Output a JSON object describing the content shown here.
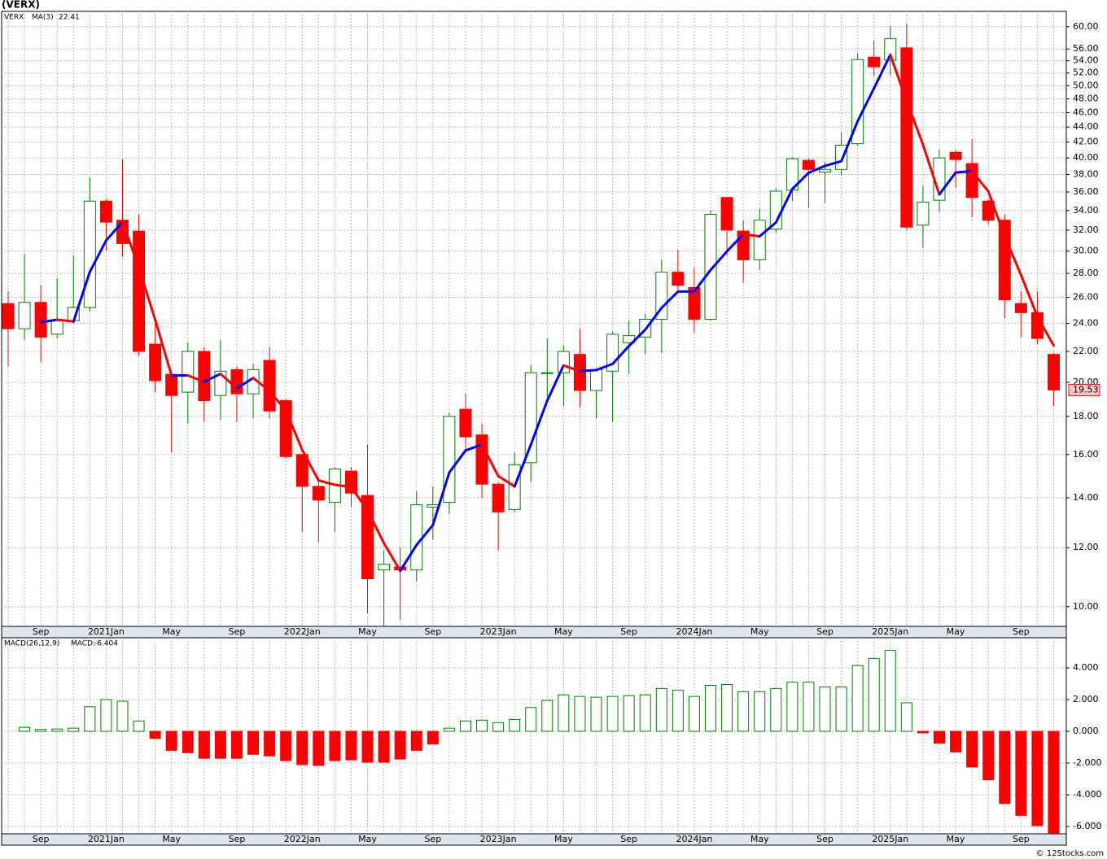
{
  "title": "(VERX)",
  "footer": "© 12Stocks.com",
  "chart_data": [
    {
      "type": "candlestick",
      "categories": [
        null,
        null,
        "Sep",
        null,
        null,
        null,
        "2021Jan",
        null,
        null,
        null,
        "May",
        null,
        null,
        null,
        "Sep",
        null,
        null,
        null,
        "2022Jan",
        null,
        null,
        null,
        "May",
        null,
        null,
        null,
        "Sep",
        null,
        null,
        null,
        "2023Jan",
        null,
        null,
        null,
        "May",
        null,
        null,
        null,
        "Sep",
        null,
        null,
        null,
        "2024Jan",
        null,
        null,
        null,
        "May",
        null,
        null,
        null,
        "Sep",
        null,
        null,
        null,
        "2025Jan",
        null,
        null,
        null,
        "May",
        null,
        null,
        null,
        "Sep",
        null,
        null
      ],
      "name": "VERX",
      "open": [
        25.5,
        23.6,
        25.6,
        23.2,
        24.2,
        25.2,
        35.0,
        33.0,
        31.9,
        22.5,
        20.5,
        19.4,
        22.0,
        19.2,
        20.8,
        19.3,
        21.4,
        18.9,
        16.0,
        14.5,
        13.8,
        15.2,
        14.1,
        11.2,
        11.3,
        11.2,
        13.6,
        13.8,
        18.4,
        17.0,
        14.6,
        13.5,
        15.6,
        20.6,
        20.6,
        21.8,
        19.5,
        20.7,
        22.6,
        23.0,
        24.3,
        28.1,
        26.8,
        24.3,
        35.4,
        31.9,
        29.2,
        32.1,
        36.2,
        39.7,
        38.3,
        38.6,
        41.8,
        54.6,
        54.1,
        56.2,
        32.5,
        35.1,
        40.7,
        39.3,
        35.0,
        33.0,
        25.5,
        24.8,
        21.8
      ],
      "high": [
        26.5,
        29.7,
        27.0,
        27.6,
        29.6,
        37.7,
        35.2,
        39.8,
        33.6,
        24.0,
        20.6,
        22.6,
        22.3,
        22.8,
        21.0,
        21.2,
        22.3,
        19.0,
        16.0,
        14.9,
        15.4,
        15.4,
        16.5,
        11.9,
        12.0,
        14.3,
        14.5,
        18.2,
        19.3,
        17.6,
        14.7,
        16.1,
        21.1,
        22.9,
        22.4,
        23.6,
        20.9,
        23.4,
        24.2,
        24.7,
        29.2,
        30.1,
        28.5,
        34.0,
        35.5,
        33.0,
        34.2,
        36.5,
        40.1,
        40.0,
        39.5,
        43.3,
        55.3,
        57.5,
        60.1,
        60.6,
        36.7,
        41.0,
        41.0,
        42.4,
        35.2,
        33.6,
        26.5,
        26.5,
        21.9
      ],
      "low": [
        21.0,
        22.8,
        21.3,
        22.9,
        24.0,
        24.9,
        30.0,
        29.5,
        21.7,
        19.4,
        16.1,
        17.6,
        17.7,
        17.8,
        17.7,
        17.9,
        17.9,
        15.8,
        12.6,
        12.2,
        12.6,
        13.6,
        9.8,
        9.4,
        9.6,
        10.8,
        12.3,
        13.3,
        16.2,
        14.0,
        11.9,
        13.4,
        14.7,
        19.1,
        18.6,
        18.5,
        17.9,
        17.7,
        20.5,
        21.8,
        21.9,
        26.6,
        23.3,
        24.2,
        29.6,
        27.2,
        28.3,
        31.7,
        35.0,
        34.3,
        34.8,
        37.9,
        41.6,
        51.5,
        51.6,
        32.0,
        30.3,
        33.8,
        36.5,
        33.3,
        32.6,
        24.4,
        23.0,
        22.5,
        18.6
      ],
      "close": [
        23.6,
        25.6,
        23.0,
        24.2,
        25.2,
        35.0,
        32.8,
        30.7,
        22.0,
        20.1,
        19.2,
        22.0,
        18.9,
        20.7,
        19.3,
        20.8,
        18.3,
        15.9,
        14.5,
        13.9,
        15.3,
        14.2,
        10.9,
        11.4,
        11.2,
        13.7,
        13.7,
        18.0,
        16.9,
        14.6,
        13.4,
        15.5,
        20.6,
        20.6,
        22.0,
        19.5,
        20.8,
        23.2,
        23.1,
        24.3,
        28.1,
        27.0,
        24.3,
        33.6,
        32.0,
        29.2,
        33.0,
        36.1,
        39.9,
        38.6,
        38.6,
        41.6,
        54.2,
        53.0,
        57.8,
        32.3,
        34.9,
        40.0,
        39.8,
        35.4,
        33.0,
        25.8,
        24.8,
        22.9,
        19.53
      ],
      "up_color": "#008000",
      "down_color": "#ff0000",
      "series": [
        {
          "name": "MA(3)",
          "rise_color": "#0000ff",
          "fall_color": "#ff0000",
          "values": [
            null,
            null,
            24.07,
            24.27,
            24.13,
            28.13,
            31.0,
            32.83,
            28.5,
            24.27,
            20.43,
            20.43,
            20.03,
            20.53,
            19.63,
            20.27,
            19.47,
            18.33,
            16.23,
            14.77,
            14.57,
            14.47,
            13.47,
            12.17,
            11.17,
            12.1,
            12.87,
            15.13,
            16.2,
            16.5,
            14.97,
            14.5,
            16.5,
            18.9,
            21.07,
            20.7,
            20.77,
            21.17,
            22.37,
            23.53,
            25.17,
            26.47,
            26.47,
            28.3,
            29.97,
            31.6,
            31.4,
            32.77,
            36.33,
            38.2,
            39.03,
            39.6,
            44.8,
            49.6,
            55.0,
            47.7,
            41.67,
            35.73,
            38.23,
            38.4,
            36.07,
            31.4,
            27.87,
            24.5,
            22.41
          ]
        }
      ],
      "log_scale": true,
      "grid": true,
      "ylim": [
        9.41,
        62.9
      ],
      "yticks": [
        {
          "value": 10,
          "label": "10.00"
        },
        {
          "value": 12,
          "label": "12.00"
        },
        {
          "value": 14,
          "label": "14.00"
        },
        {
          "value": 16,
          "label": "16.00"
        },
        {
          "value": 18,
          "label": "18.00"
        },
        {
          "value": 20,
          "label": "20.00"
        },
        {
          "value": 22,
          "label": "22.00"
        },
        {
          "value": 24,
          "label": "24.00"
        },
        {
          "value": 26,
          "label": "26.00"
        },
        {
          "value": 28,
          "label": "28.00"
        },
        {
          "value": 30,
          "label": "30.00"
        },
        {
          "value": 32,
          "label": "32.00"
        },
        {
          "value": 34,
          "label": "34.00"
        },
        {
          "value": 36,
          "label": "36.00"
        },
        {
          "value": 38,
          "label": "38.00"
        },
        {
          "value": 40,
          "label": "40.00"
        },
        {
          "value": 42,
          "label": "42.00"
        },
        {
          "value": 44,
          "label": "44.00"
        },
        {
          "value": 46,
          "label": "46.00"
        },
        {
          "value": 48,
          "label": "48.00"
        },
        {
          "value": 50,
          "label": "50.00"
        },
        {
          "value": 52,
          "label": "52.00"
        },
        {
          "value": 54,
          "label": "54.00"
        },
        {
          "value": 56,
          "label": "56.00"
        },
        {
          "value": 60,
          "label": "60.00"
        }
      ]
    },
    {
      "type": "bar",
      "name": "MACD(26,12,9)",
      "series": [
        {
          "name": "MACD:",
          "pos_color": "#008000",
          "neg_color": "#ff0000",
          "values": [
            null,
            0.25,
            0.12,
            0.15,
            0.2,
            1.55,
            2.0,
            1.9,
            0.65,
            -0.45,
            -1.2,
            -1.35,
            -1.7,
            -1.7,
            -1.7,
            -1.45,
            -1.55,
            -1.85,
            -2.1,
            -2.15,
            -1.85,
            -1.8,
            -1.95,
            -1.95,
            -1.75,
            -1.2,
            -0.8,
            0.2,
            0.65,
            0.7,
            0.55,
            0.75,
            1.5,
            1.95,
            2.3,
            2.2,
            2.15,
            2.2,
            2.25,
            2.3,
            2.7,
            2.6,
            2.2,
            2.9,
            2.95,
            2.5,
            2.5,
            2.7,
            3.1,
            3.1,
            2.8,
            2.8,
            4.15,
            4.6,
            5.1,
            1.8,
            -0.1,
            -0.75,
            -1.3,
            -2.25,
            -3.05,
            -4.55,
            -5.3,
            -5.95,
            -6.404
          ]
        }
      ],
      "grid": true,
      "ylim": [
        -6.46,
        5.9
      ],
      "yticks": [
        {
          "value": -6,
          "label": "-6.000"
        },
        {
          "value": -4,
          "label": "-4.000"
        },
        {
          "value": -2,
          "label": "-2.000"
        },
        {
          "value": 0,
          "label": "0.000"
        },
        {
          "value": 2,
          "label": "2.000"
        },
        {
          "value": 4,
          "label": "4.000"
        }
      ]
    }
  ]
}
